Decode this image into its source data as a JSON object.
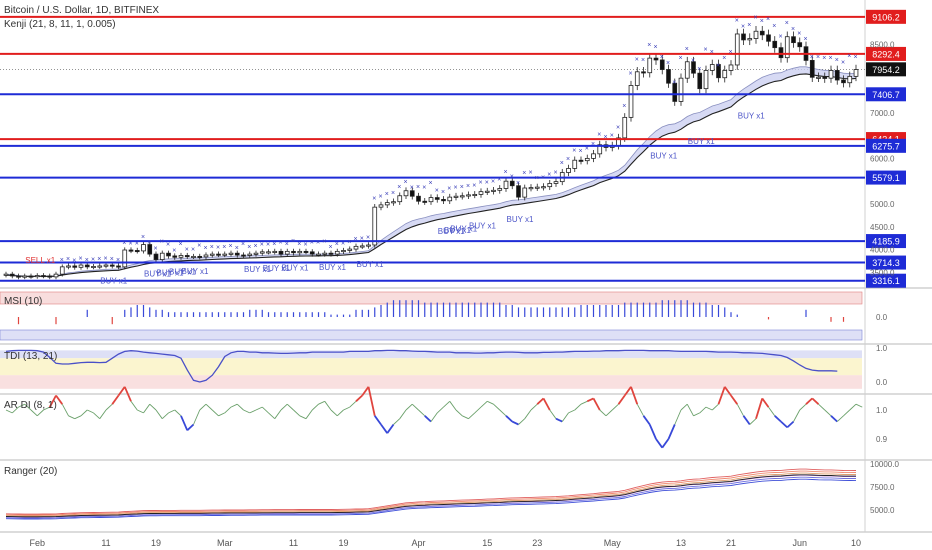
{
  "header": {
    "symbol_title": "Bitcoin / U.S. Dollar, 1D, BITFINEX",
    "kenji_label": "Kenji (21, 8, 11, 1, 0.005)"
  },
  "colors": {
    "red_level": "#e11d1d",
    "blue_level": "#1e2bd6",
    "candle_body_down": "#111111",
    "ribbon_fill": "#c9cdf0",
    "signal_text": "#4c55c8",
    "sell_text": "#e03030",
    "up_segment": "#e0453e",
    "down_segment": "#3848d8",
    "neutral_segment": "#6aa06a"
  },
  "chart_data": [
    {
      "type": "candlestick",
      "title": "Bitcoin / U.S. Dollar, 1D, BITFINEX",
      "price_ticks": [
        "8500.0",
        "8000.0",
        "7500.0",
        "7000.0",
        "6500.0",
        "6000.0",
        "5500.0",
        "5000.0",
        "4500.0",
        "4000.0",
        "3500.0"
      ],
      "ylim": [
        3200,
        9300
      ],
      "current_price": "7954.2",
      "levels": [
        {
          "label": "9106.2",
          "value": 9106.2,
          "color": "red"
        },
        {
          "label": "8292.4",
          "value": 8292.4,
          "color": "red"
        },
        {
          "label": "7406.7",
          "value": 7406.7,
          "color": "blue"
        },
        {
          "label": "6424.1",
          "value": 6424.1,
          "color": "red"
        },
        {
          "label": "6275.7",
          "value": 6275.7,
          "color": "blue"
        },
        {
          "label": "5579.1",
          "value": 5579.1,
          "color": "blue"
        },
        {
          "label": "4185.9",
          "value": 4185.9,
          "color": "blue"
        },
        {
          "label": "3714.3",
          "value": 3714.3,
          "color": "blue"
        },
        {
          "label": "3316.1",
          "value": 3316.1,
          "color": "blue"
        }
      ],
      "closes": [
        3460,
        3420,
        3400,
        3420,
        3410,
        3430,
        3420,
        3400,
        3460,
        3620,
        3640,
        3610,
        3660,
        3620,
        3630,
        3640,
        3660,
        3640,
        3620,
        3990,
        3980,
        3970,
        4110,
        3900,
        3780,
        3920,
        3860,
        3830,
        3870,
        3850,
        3850,
        3840,
        3880,
        3900,
        3890,
        3900,
        3920,
        3880,
        3870,
        3900,
        3920,
        3950,
        3950,
        3960,
        3900,
        3960,
        3930,
        3960,
        3950,
        3900,
        3900,
        3920,
        3900,
        3960,
        3980,
        4010,
        4070,
        4080,
        4100,
        4930,
        4980,
        5030,
        5050,
        5180,
        5290,
        5170,
        5060,
        5050,
        5140,
        5100,
        5070,
        5150,
        5170,
        5180,
        5200,
        5210,
        5270,
        5280,
        5300,
        5340,
        5500,
        5400,
        5150,
        5350,
        5360,
        5370,
        5380,
        5450,
        5490,
        5690,
        5780,
        5960,
        5950,
        6000,
        6100,
        6300,
        6240,
        6280,
        6450,
        6900,
        7600,
        7900,
        7880,
        8200,
        8160,
        7950,
        7650,
        7250,
        7760,
        8120,
        7870,
        7530,
        7930,
        8060,
        7770,
        7930,
        8050,
        8730,
        8600,
        8630,
        8790,
        8710,
        8570,
        8430,
        8210,
        8670,
        8540,
        8450,
        8150,
        7780,
        7780,
        7760,
        7930,
        7720,
        7660,
        7800,
        7950
      ],
      "ribbon_upper": [
        3460,
        3445,
        3430,
        3420,
        3418,
        3420,
        3420,
        3418,
        3425,
        3460,
        3490,
        3505,
        3525,
        3535,
        3545,
        3555,
        3565,
        3570,
        3573,
        3620,
        3660,
        3690,
        3730,
        3760,
        3770,
        3785,
        3795,
        3800,
        3805,
        3810,
        3815,
        3818,
        3825,
        3832,
        3840,
        3845,
        3852,
        3856,
        3858,
        3862,
        3866,
        3872,
        3878,
        3883,
        3885,
        3890,
        3893,
        3897,
        3900,
        3900,
        3900,
        3902,
        3902,
        3908,
        3916,
        3926,
        3942,
        3958,
        3974,
        4090,
        4200,
        4300,
        4390,
        4480,
        4570,
        4630,
        4670,
        4700,
        4740,
        4770,
        4790,
        4820,
        4845,
        4870,
        4895,
        4915,
        4940,
        4965,
        4985,
        5010,
        5050,
        5080,
        5090,
        5110,
        5130,
        5150,
        5170,
        5190,
        5210,
        5250,
        5300,
        5360,
        5410,
        5460,
        5510,
        5580,
        5630,
        5680,
        5740,
        5850,
        6020,
        6190,
        6330,
        6480,
        6600,
        6690,
        6740,
        6760,
        6820,
        6920,
        6980,
        7010,
        7080,
        7150,
        7190,
        7240,
        7290,
        7420,
        7520,
        7610,
        7700,
        7780,
        7830,
        7870,
        7880,
        7940,
        7980,
        8010,
        8010,
        7980,
        7950,
        7930,
        7930,
        7900,
        7870,
        7860,
        7870
      ],
      "ribbon_lower": [
        3440,
        3430,
        3418,
        3412,
        3410,
        3412,
        3413,
        3410,
        3416,
        3440,
        3462,
        3478,
        3495,
        3505,
        3515,
        3524,
        3534,
        3540,
        3544,
        3580,
        3612,
        3638,
        3672,
        3698,
        3710,
        3726,
        3737,
        3744,
        3751,
        3757,
        3763,
        3767,
        3774,
        3781,
        3788,
        3794,
        3801,
        3806,
        3809,
        3814,
        3819,
        3826,
        3832,
        3838,
        3841,
        3847,
        3851,
        3856,
        3859,
        3860,
        3861,
        3864,
        3865,
        3871,
        3879,
        3889,
        3904,
        3919,
        3934,
        4020,
        4110,
        4195,
        4275,
        4360,
        4440,
        4500,
        4545,
        4580,
        4620,
        4655,
        4680,
        4710,
        4738,
        4765,
        4790,
        4812,
        4838,
        4862,
        4884,
        4908,
        4945,
        4975,
        4990,
        5012,
        5034,
        5055,
        5076,
        5098,
        5120,
        5158,
        5204,
        5260,
        5308,
        5356,
        5404,
        5468,
        5516,
        5563,
        5620,
        5720,
        5870,
        6020,
        6150,
        6290,
        6400,
        6490,
        6545,
        6575,
        6640,
        6735,
        6800,
        6840,
        6910,
        6980,
        7025,
        7078,
        7130,
        7250,
        7345,
        7430,
        7515,
        7590,
        7645,
        7690,
        7710,
        7770,
        7812,
        7846,
        7855,
        7835,
        7812,
        7795,
        7797,
        7775,
        7752,
        7745,
        7755
      ],
      "dates": [
        "Feb",
        "11",
        "19",
        "Mar",
        "11",
        "19",
        "Apr",
        "15",
        "23",
        "May",
        "13",
        "21",
        "Jun",
        "10"
      ],
      "signals": [
        {
          "text": "SELL x1",
          "side": "sell"
        },
        {
          "text": "BUY x1",
          "side": "buy"
        },
        {
          "text": "BUY x1",
          "side": "buy"
        },
        {
          "text": "BUY x1",
          "side": "buy"
        },
        {
          "text": "BUY x1",
          "side": "buy"
        },
        {
          "text": "BUY x1",
          "side": "buy"
        },
        {
          "text": "BUY x1",
          "side": "buy"
        },
        {
          "text": "BUY x1",
          "side": "buy"
        },
        {
          "text": "BUY x1",
          "side": "buy"
        },
        {
          "text": "BUY x1",
          "side": "buy"
        },
        {
          "text": "BUY x1",
          "side": "buy"
        },
        {
          "text": "BUY x1",
          "side": "buy"
        },
        {
          "text": "BUY x1",
          "side": "buy"
        },
        {
          "text": "BUY x1",
          "side": "buy"
        },
        {
          "text": "BUY x1",
          "side": "buy"
        },
        {
          "text": "BUY x1",
          "side": "buy"
        },
        {
          "text": "BUY x1",
          "side": "buy"
        },
        {
          "text": "BUY x1",
          "side": "buy"
        },
        {
          "text": "BUY x1",
          "side": "buy"
        }
      ]
    },
    {
      "type": "bar",
      "title": "MSI (10)",
      "ylim": [
        -1,
        1
      ],
      "ticks": [
        "0.0"
      ],
      "values": [
        0.0,
        0.0,
        -0.3,
        0.0,
        0.0,
        0.0,
        0.0,
        0.0,
        -0.3,
        0.0,
        0.0,
        0.0,
        0.0,
        0.3,
        0.0,
        0.0,
        0.0,
        -0.3,
        0.0,
        0.3,
        0.4,
        0.5,
        0.5,
        0.4,
        0.3,
        0.3,
        0.2,
        0.2,
        0.2,
        0.2,
        0.2,
        0.2,
        0.2,
        0.2,
        0.2,
        0.2,
        0.2,
        0.2,
        0.2,
        0.3,
        0.3,
        0.3,
        0.2,
        0.2,
        0.2,
        0.2,
        0.2,
        0.2,
        0.2,
        0.2,
        0.2,
        0.2,
        0.1,
        0.1,
        0.1,
        0.1,
        0.3,
        0.3,
        0.3,
        0.4,
        0.5,
        0.6,
        0.7,
        0.7,
        0.7,
        0.7,
        0.7,
        0.6,
        0.6,
        0.6,
        0.6,
        0.6,
        0.6,
        0.6,
        0.6,
        0.6,
        0.6,
        0.6,
        0.6,
        0.6,
        0.5,
        0.5,
        0.4,
        0.4,
        0.4,
        0.4,
        0.4,
        0.4,
        0.4,
        0.4,
        0.4,
        0.4,
        0.5,
        0.5,
        0.5,
        0.5,
        0.5,
        0.5,
        0.5,
        0.6,
        0.6,
        0.6,
        0.6,
        0.6,
        0.6,
        0.7,
        0.7,
        0.7,
        0.7,
        0.7,
        0.6,
        0.6,
        0.6,
        0.5,
        0.5,
        0.4,
        0.2,
        0.1,
        0.0,
        0.0,
        0.0,
        0.0,
        -0.1,
        0.0,
        0.0,
        0.0,
        0.0,
        0.0,
        0.3,
        0.0,
        0.0,
        0.0,
        -0.2,
        0.0,
        -0.2,
        0.0,
        0.0,
        0.0,
        0.0
      ]
    },
    {
      "type": "line",
      "title": "TDI (13, 21)",
      "ylim": [
        -0.2,
        1.2
      ],
      "ticks": [
        "1.0",
        "0.0"
      ],
      "values": [
        0.9,
        0.92,
        0.93,
        0.93,
        0.93,
        0.92,
        0.88,
        0.72,
        0.55,
        0.53,
        0.53,
        0.55,
        0.57,
        0.58,
        0.58,
        0.57,
        0.58,
        0.7,
        0.82,
        0.9,
        0.92,
        0.91,
        0.88,
        0.86,
        0.84,
        0.82,
        0.8,
        0.78,
        0.7,
        0.35,
        0.05,
        0.0,
        0.05,
        0.2,
        0.45,
        0.75,
        0.86,
        0.9,
        0.9,
        0.88,
        0.88,
        0.86,
        0.86,
        0.85,
        0.84,
        0.84,
        0.85,
        0.86,
        0.86,
        0.88,
        0.88,
        0.88,
        0.88,
        0.88,
        0.88,
        0.9,
        0.9,
        0.9,
        0.9,
        0.92,
        0.92,
        0.93,
        0.93,
        0.92,
        0.92,
        0.91,
        0.9,
        0.9,
        0.89,
        0.88,
        0.88,
        0.88,
        0.86,
        0.86,
        0.86,
        0.85,
        0.85,
        0.86,
        0.86,
        0.87,
        0.88,
        0.88,
        0.87,
        0.86,
        0.86,
        0.86,
        0.87,
        0.87,
        0.88,
        0.88,
        0.89,
        0.9,
        0.9,
        0.9,
        0.91,
        0.91,
        0.92,
        0.92,
        0.92,
        0.93,
        0.93,
        0.93,
        0.93,
        0.92,
        0.92,
        0.92,
        0.92,
        0.91,
        0.9,
        0.9,
        0.9,
        0.9,
        0.9,
        0.89,
        0.88,
        0.88,
        0.88,
        0.87,
        0.86,
        0.86,
        0.85,
        0.84,
        0.82,
        0.8,
        0.78,
        0.72,
        0.62,
        0.5,
        0.4,
        0.35,
        0.33,
        0.33,
        0.33,
        0.32
      ]
    },
    {
      "type": "line",
      "title": "AR DI (8, 1)",
      "ylim": [
        0.85,
        1.15
      ],
      "ticks": [
        "1.0",
        "0.9"
      ],
      "values": [
        1.0,
        0.99,
        1.01,
        1.02,
        1.0,
        0.98,
        1.0,
        1.01,
        1.05,
        1.02,
        0.98,
        0.97,
        0.98,
        1.0,
        0.99,
        0.97,
        1.0,
        1.02,
        1.05,
        1.08,
        1.03,
        1.0,
        0.99,
        1.02,
        1.0,
        0.97,
        0.99,
        1.0,
        0.98,
        0.93,
        0.95,
        1.0,
        1.02,
        1.0,
        0.98,
        0.99,
        1.01,
        1.02,
        1.0,
        0.99,
        1.0,
        1.01,
        0.99,
        0.97,
        1.0,
        1.02,
        1.0,
        0.98,
        0.97,
        1.0,
        1.02,
        1.03,
        1.0,
        0.98,
        1.0,
        1.01,
        1.03,
        1.05,
        1.08,
        0.98,
        0.95,
        0.92,
        0.95,
        0.97,
        1.0,
        1.02,
        1.0,
        0.98,
        0.96,
        0.99,
        1.01,
        1.03,
        1.0,
        0.98,
        0.97,
        0.99,
        1.01,
        1.03,
        1.02,
        1.0,
        0.98,
        0.96,
        0.95,
        0.97,
        1.0,
        1.02,
        1.04,
        1.0,
        0.97,
        0.96,
        0.99,
        1.0,
        1.02,
        1.03,
        1.04,
        1.0,
        0.98,
        1.0,
        1.02,
        1.05,
        1.08,
        1.02,
        0.98,
        0.95,
        0.9,
        0.87,
        0.9,
        0.95,
        1.0,
        1.02,
        0.98,
        0.99,
        1.01,
        1.0,
        1.02,
        1.08,
        1.05,
        1.02,
        0.98,
        0.95,
        0.97,
        1.04,
        1.01,
        0.98,
        0.96,
        0.94,
        0.96,
        1.0,
        1.02,
        1.04,
        1.02,
        1.0,
        0.98,
        0.96,
        0.98,
        1.0,
        1.02,
        1.01
      ]
    },
    {
      "type": "line",
      "title": "Ranger (20)",
      "ylim": [
        4000,
        10200
      ],
      "ticks": [
        "10000.0",
        "7500.0",
        "5000.0"
      ],
      "values": [
        4290,
        4280,
        4270,
        4260,
        4260,
        4260,
        4270,
        4270,
        4280,
        4320,
        4350,
        4370,
        4400,
        4410,
        4420,
        4430,
        4440,
        4450,
        4460,
        4510,
        4540,
        4570,
        4610,
        4620,
        4620,
        4630,
        4630,
        4630,
        4640,
        4640,
        4640,
        4640,
        4650,
        4660,
        4660,
        4670,
        4680,
        4680,
        4680,
        4690,
        4690,
        4700,
        4700,
        4710,
        4710,
        4710,
        4710,
        4720,
        4720,
        4720,
        4720,
        4720,
        4720,
        4730,
        4740,
        4750,
        4770,
        4780,
        4800,
        4900,
        5000,
        5100,
        5200,
        5300,
        5400,
        5450,
        5500,
        5520,
        5560,
        5580,
        5600,
        5630,
        5660,
        5680,
        5700,
        5720,
        5750,
        5780,
        5800,
        5830,
        5870,
        5900,
        5910,
        5930,
        5950,
        5970,
        5990,
        6010,
        6030,
        6070,
        6120,
        6180,
        6230,
        6280,
        6330,
        6400,
        6450,
        6500,
        6560,
        6670,
        6840,
        7010,
        7150,
        7300,
        7420,
        7510,
        7560,
        7580,
        7640,
        7740,
        7800,
        7830,
        7900,
        7970,
        8010,
        8060,
        8110,
        8240,
        8340,
        8430,
        8520,
        8600,
        8650,
        8690,
        8700,
        8760,
        8800,
        8830,
        8830,
        8800,
        8770,
        8750,
        8750,
        8720,
        8690,
        8680,
        8690
      ]
    }
  ]
}
